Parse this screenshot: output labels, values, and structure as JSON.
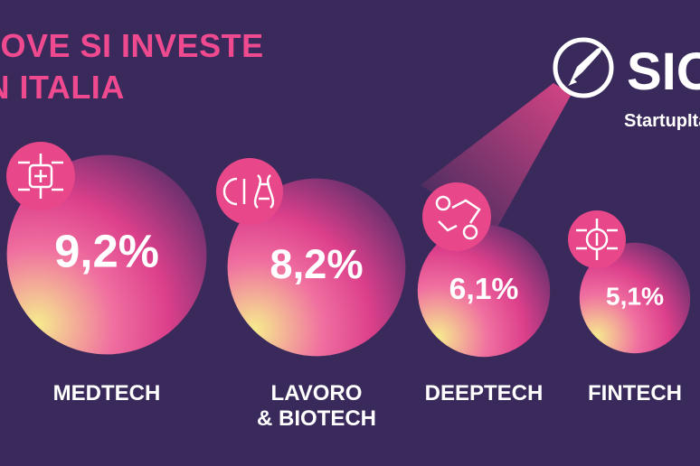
{
  "chart_data": {
    "type": "bubble",
    "title": "DOVE SI INVESTE\nIN ITALIA",
    "logo": {
      "name": "SIOS",
      "brand": "StartupItalia"
    },
    "categories": [
      "MEDTECH",
      "LAVORO\n& BIOTECH",
      "DEEPTECH",
      "FINTECH"
    ],
    "values": [
      9.2,
      8.2,
      6.1,
      5.1
    ],
    "value_labels": [
      "9,2%",
      "8,2%",
      "6,1%",
      "5,1%"
    ]
  }
}
